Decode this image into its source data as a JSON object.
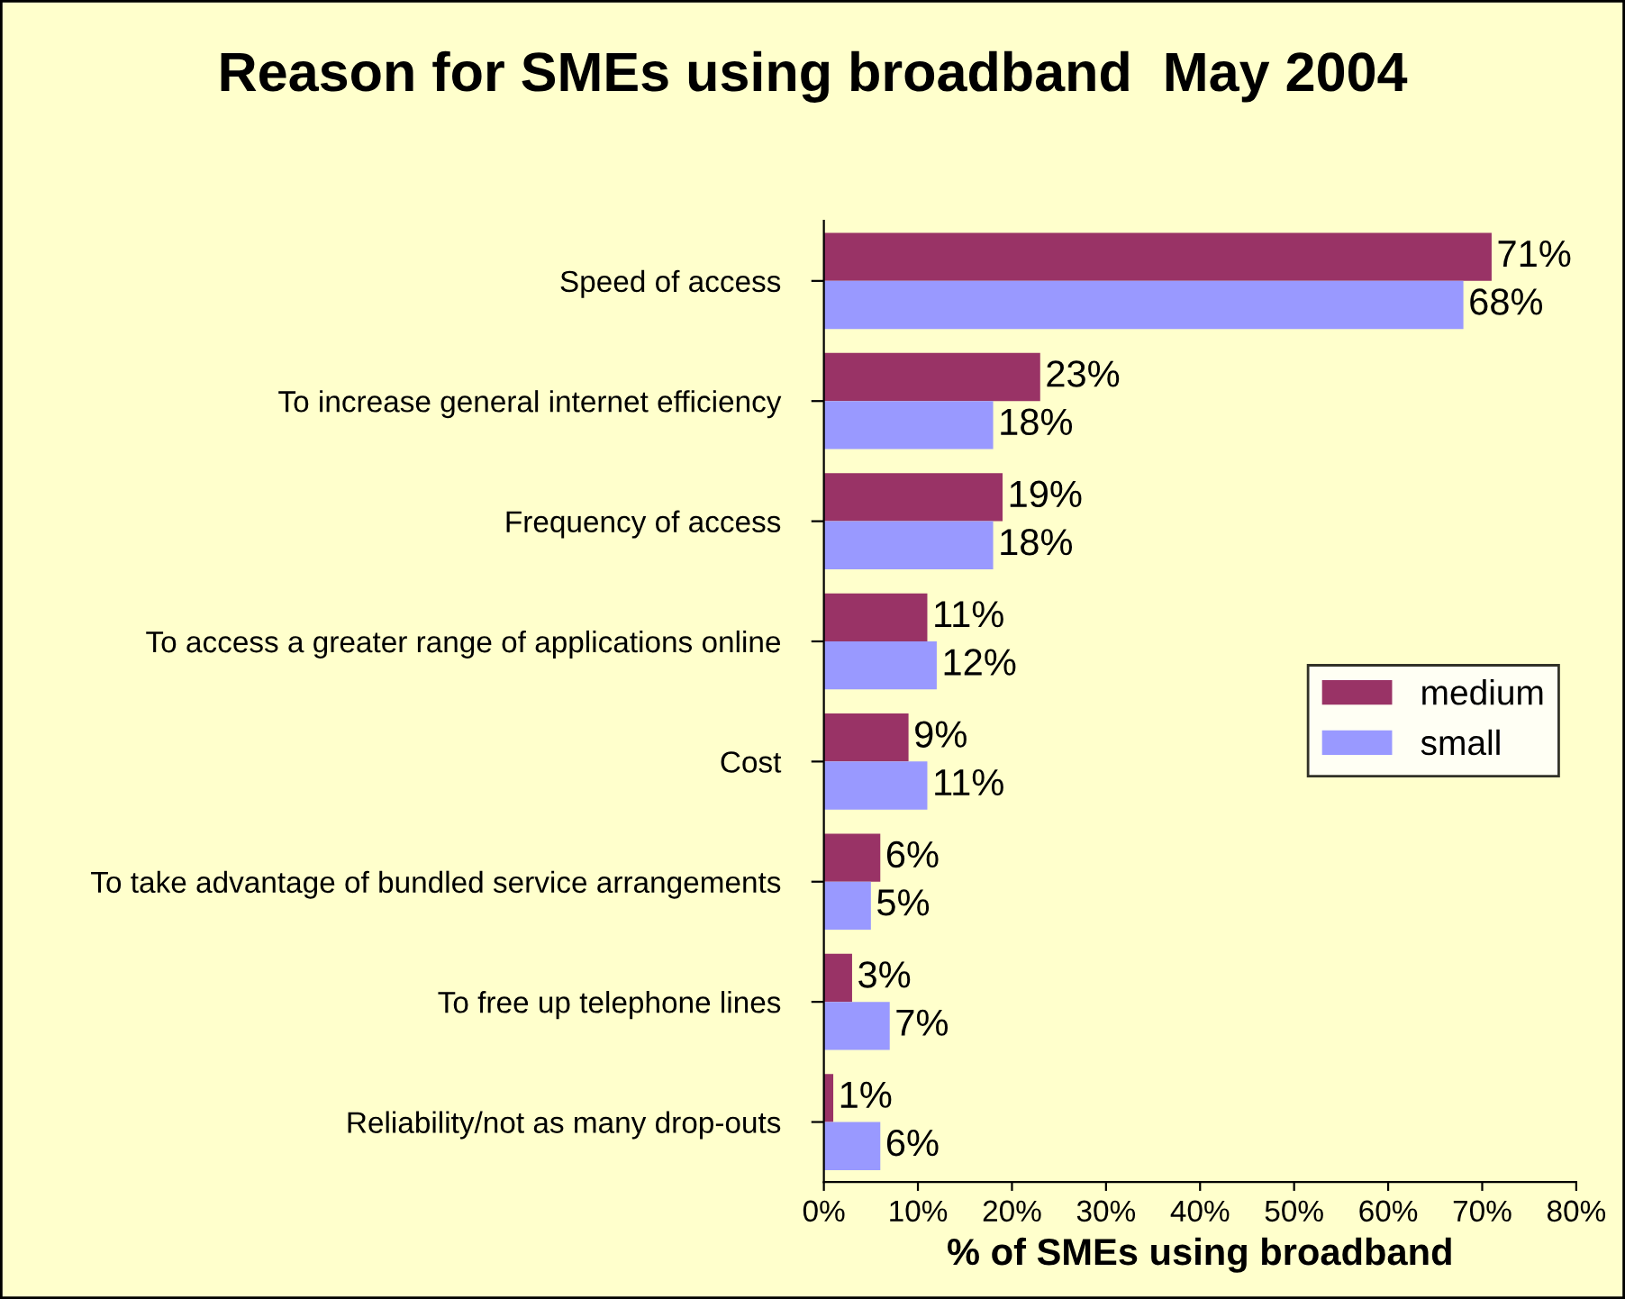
{
  "chart_data": {
    "type": "bar",
    "orientation": "horizontal",
    "title": "Reason for SMEs using broadband  May 2004",
    "xlabel": "% of SMEs using broadband",
    "categories": [
      "Speed of access",
      "To increase general internet efficiency",
      "Frequency of access",
      "To access a greater range of applications online",
      "Cost",
      "To take advantage of bundled service arrangements",
      "To free up telephone lines",
      "Reliability/not as many drop-outs"
    ],
    "series": [
      {
        "name": "medium",
        "color": "#993366",
        "values": [
          71,
          23,
          19,
          11,
          9,
          6,
          3,
          1
        ],
        "value_labels": [
          "71%",
          "23%",
          "19%",
          "11%",
          "9%",
          "6%",
          "3%",
          "1%"
        ]
      },
      {
        "name": "small",
        "color": "#9999ff",
        "values": [
          68,
          18,
          18,
          12,
          11,
          5,
          7,
          6
        ],
        "value_labels": [
          "68%",
          "18%",
          "18%",
          "12%",
          "11%",
          "5%",
          "7%",
          "6%"
        ]
      }
    ],
    "xlim": [
      0,
      80
    ],
    "xticks": [
      {
        "value": 0,
        "label": "0%"
      },
      {
        "value": 10,
        "label": "10%"
      },
      {
        "value": 20,
        "label": "20%"
      },
      {
        "value": 30,
        "label": "30%"
      },
      {
        "value": 40,
        "label": "40%"
      },
      {
        "value": 50,
        "label": "50%"
      },
      {
        "value": 60,
        "label": "60%"
      },
      {
        "value": 70,
        "label": "70%"
      },
      {
        "value": 80,
        "label": "80%"
      }
    ],
    "grid": false,
    "legend": "right"
  }
}
